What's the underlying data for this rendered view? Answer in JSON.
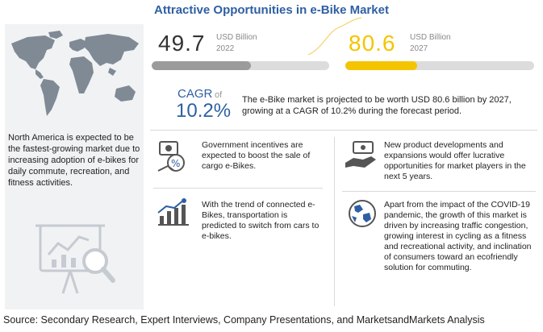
{
  "header": {
    "title": "Attractive Opportunities in e-Bike Market"
  },
  "left_panel": {
    "text": "North America is expected to be the fastest-growing market due to increasing adoption of e-bikes for daily commute, recreation, and fitness activities."
  },
  "market": {
    "value_2022": "49.7",
    "unit_2022": "USD Billion",
    "year_2022": "2022",
    "progress_2022": 0.56,
    "color_2022": "#9b9b9b",
    "value_2027": "80.6",
    "unit_2027": "USD Billion",
    "year_2027": "2027",
    "progress_2027": 0.38,
    "color_2027": "#f5c400"
  },
  "cagr": {
    "label": "CAGR",
    "of": "of",
    "value": "10.2%",
    "description": "The e-Bike market is projected to be worth USD 80.6 billion by 2027, growing at a CAGR of 10.2% during the forecast period."
  },
  "insights": [
    {
      "icon": "incentive-icon",
      "text": "Government incentives are expected to boost the sale of cargo e-Bikes."
    },
    {
      "icon": "growth-chart-icon",
      "text": "With the trend of connected e-Bikes, transportation is predicted to switch from cars to e-bikes."
    },
    {
      "icon": "money-hand-icon",
      "text": "New product developments and expansions would offer lucrative opportunities for market players in the next 5 years."
    },
    {
      "icon": "globe-icon",
      "text": "Apart from the impact of the COVID-19 pandemic, the growth of this market is driven by increasing traffic congestion, growing interest in cycling as a fitness and recreational activity, and inclination of consumers toward an ecofriendly solution for commuting."
    }
  ],
  "footer": {
    "source": "Source: Secondary Research, Expert Interviews, Company Presentations, and MarketsandMarkets Analysis"
  }
}
